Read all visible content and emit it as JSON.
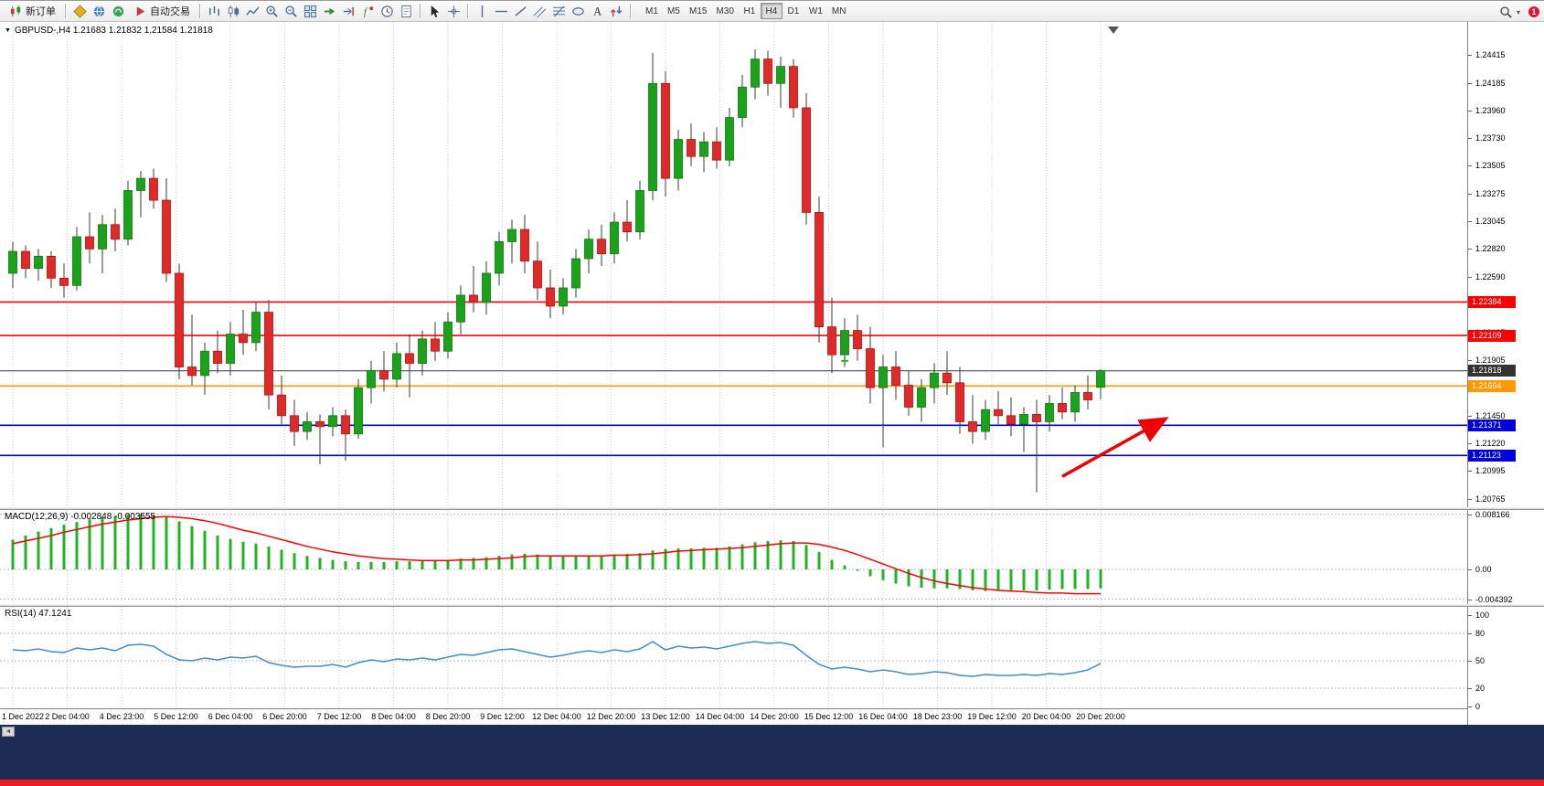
{
  "toolbar": {
    "notification_count": "1",
    "active_timeframe": "H4",
    "timeframes": [
      "M1",
      "M5",
      "M15",
      "M30",
      "H1",
      "H4",
      "D1",
      "W1",
      "MN"
    ],
    "buttons": [
      {
        "name": "new-order",
        "icon": "new-order",
        "label": "新订单"
      },
      {
        "name": "separator"
      },
      {
        "name": "mql5",
        "icon": "mql5"
      },
      {
        "name": "market",
        "icon": "market"
      },
      {
        "name": "community",
        "icon": "community"
      },
      {
        "name": "auto-trading",
        "icon": "auto-trading",
        "label": "自动交易"
      },
      {
        "name": "separator"
      },
      {
        "name": "bar-chart",
        "icon": "bar-chart"
      },
      {
        "name": "candle-chart",
        "icon": "candle-chart"
      },
      {
        "name": "line-chart",
        "icon": "line-chart"
      },
      {
        "name": "zoom-in",
        "icon": "zoom-in"
      },
      {
        "name": "zoom-out",
        "icon": "zoom-out"
      },
      {
        "name": "tile-windows",
        "icon": "tile-windows"
      },
      {
        "name": "auto-scroll",
        "icon": "auto-scroll"
      },
      {
        "name": "chart-shift",
        "icon": "chart-shift"
      },
      {
        "name": "indicators",
        "icon": "indicators"
      },
      {
        "name": "periods",
        "icon": "periods"
      },
      {
        "name": "templates",
        "icon": "templates"
      },
      {
        "name": "separator"
      },
      {
        "name": "cursor",
        "icon": "cursor"
      },
      {
        "name": "crosshair",
        "icon": "crosshair"
      },
      {
        "name": "separator"
      },
      {
        "name": "vertical-line",
        "icon": "vertical-line"
      },
      {
        "name": "horizontal-line",
        "icon": "horizontal-line"
      },
      {
        "name": "trendline",
        "icon": "trendline"
      },
      {
        "name": "channel",
        "icon": "channel"
      },
      {
        "name": "fibonacci",
        "icon": "fibonacci"
      },
      {
        "name": "shapes",
        "icon": "shapes"
      },
      {
        "name": "text",
        "icon": "text"
      },
      {
        "name": "arrows",
        "icon": "arrows"
      },
      {
        "name": "separator"
      }
    ]
  },
  "chart_header": {
    "symbol": "GBPUSD-",
    "timeframe": "H4",
    "open": "1.21683",
    "high": "1.21832",
    "low": "1.21584",
    "close": "1.21818"
  },
  "colors": {
    "up_candle": "#1aa31a",
    "up_candle_stroke": "#0b7a0b",
    "down_candle": "#e02a2a",
    "down_candle_stroke": "#b40d0d",
    "wick": "#3a3a3a",
    "grid": "#d2d2d2",
    "macd_histogram": "#22b322",
    "macd_signal": "#ff0000",
    "rsi_line": "#3d8fd1",
    "arrow": "#f00000",
    "marker": "#18a018"
  },
  "chart_data": {
    "type": "candlestick",
    "symbol": "GBPUSD-",
    "timeframe": "H4",
    "price_axis_labels": [
      "1.24415",
      "1.24185",
      "1.23960",
      "1.23730",
      "1.23505",
      "1.23275",
      "1.23045",
      "1.22820",
      "1.22590",
      "1.22365",
      "1.22135",
      "1.21905",
      "1.21680",
      "1.21450",
      "1.21220",
      "1.20995",
      "1.20765"
    ],
    "x_axis_labels": [
      "1 Dec 2022",
      "2 Dec 04:00",
      "4 Dec 23:00",
      "5 Dec 12:00",
      "6 Dec 04:00",
      "6 Dec 20:00",
      "7 Dec 12:00",
      "8 Dec 04:00",
      "8 Dec 20:00",
      "9 Dec 12:00",
      "12 Dec 04:00",
      "12 Dec 20:00",
      "13 Dec 12:00",
      "14 Dec 04:00",
      "14 Dec 20:00",
      "15 Dec 12:00",
      "16 Dec 04:00",
      "18 Dec 23:00",
      "19 Dec 12:00",
      "20 Dec 04:00",
      "20 Dec 20:00"
    ],
    "horizontal_lines": [
      {
        "label": "1.22384",
        "price": 1.22384,
        "color": "#ff0000",
        "width": 1.6,
        "role": "resistance"
      },
      {
        "label": "1.22109",
        "price": 1.22109,
        "color": "#ff0000",
        "width": 1.6,
        "role": "resistance"
      },
      {
        "label": "1.21818",
        "price": 1.21818,
        "color": "#333333",
        "width": 1,
        "role": "current-price"
      },
      {
        "label": "1.21694",
        "price": 1.21694,
        "color": "#ff9900",
        "width": 1.6,
        "role": "pivot"
      },
      {
        "label": "1.21371",
        "price": 1.21371,
        "color": "#0000dd",
        "width": 1.6,
        "role": "support"
      },
      {
        "label": "1.21123",
        "price": 1.21123,
        "color": "#0000dd",
        "width": 1.6,
        "role": "support"
      }
    ],
    "trade_markers": [
      {
        "index": 65,
        "price": 1.219
      },
      {
        "index": 71,
        "price": 1.2158
      }
    ],
    "arrow_annotation": {
      "from_index": 82,
      "from_price": 1.2095,
      "to_index": 90,
      "to_price": 1.2142,
      "color": "#f00000"
    },
    "candles_ohlc": [
      [
        1.2262,
        1.2288,
        1.225,
        1.228
      ],
      [
        1.228,
        1.2285,
        1.2258,
        1.2266
      ],
      [
        1.2266,
        1.2282,
        1.2256,
        1.2276
      ],
      [
        1.2276,
        1.228,
        1.225,
        1.2258
      ],
      [
        1.2258,
        1.227,
        1.2242,
        1.2252
      ],
      [
        1.2252,
        1.23,
        1.2248,
        1.2292
      ],
      [
        1.2292,
        1.2312,
        1.227,
        1.2282
      ],
      [
        1.2282,
        1.231,
        1.2262,
        1.2302
      ],
      [
        1.2302,
        1.2315,
        1.228,
        1.229
      ],
      [
        1.229,
        1.2338,
        1.2285,
        1.233
      ],
      [
        1.233,
        1.2346,
        1.2308,
        1.234
      ],
      [
        1.234,
        1.2348,
        1.2315,
        1.2322
      ],
      [
        1.2322,
        1.234,
        1.2255,
        1.2262
      ],
      [
        1.2262,
        1.227,
        1.2175,
        1.2185
      ],
      [
        1.2185,
        1.2228,
        1.217,
        1.2178
      ],
      [
        1.2178,
        1.2205,
        1.2162,
        1.2198
      ],
      [
        1.2198,
        1.2215,
        1.218,
        1.2188
      ],
      [
        1.2188,
        1.2222,
        1.2178,
        1.2212
      ],
      [
        1.2212,
        1.2232,
        1.2195,
        1.2205
      ],
      [
        1.2205,
        1.2238,
        1.2198,
        1.223
      ],
      [
        1.223,
        1.224,
        1.215,
        1.2162
      ],
      [
        1.2162,
        1.2178,
        1.2138,
        1.2145
      ],
      [
        1.2145,
        1.2158,
        1.212,
        1.2132
      ],
      [
        1.2132,
        1.2148,
        1.2125,
        1.214
      ],
      [
        1.214,
        1.2146,
        1.2105,
        1.2136
      ],
      [
        1.2136,
        1.2152,
        1.2128,
        1.2145
      ],
      [
        1.2145,
        1.215,
        1.2108,
        1.213
      ],
      [
        1.213,
        1.2175,
        1.2126,
        1.2168
      ],
      [
        1.2168,
        1.219,
        1.2155,
        1.2182
      ],
      [
        1.2182,
        1.2198,
        1.2165,
        1.2175
      ],
      [
        1.2175,
        1.2205,
        1.2168,
        1.2196
      ],
      [
        1.2196,
        1.2212,
        1.216,
        1.2188
      ],
      [
        1.2188,
        1.2215,
        1.2178,
        1.2208
      ],
      [
        1.2208,
        1.2222,
        1.219,
        1.2198
      ],
      [
        1.2198,
        1.223,
        1.2192,
        1.2222
      ],
      [
        1.2222,
        1.2252,
        1.2212,
        1.2244
      ],
      [
        1.2244,
        1.2268,
        1.223,
        1.2238
      ],
      [
        1.2238,
        1.2272,
        1.2228,
        1.2262
      ],
      [
        1.2262,
        1.2296,
        1.2252,
        1.2288
      ],
      [
        1.2288,
        1.2306,
        1.227,
        1.2298
      ],
      [
        1.2298,
        1.231,
        1.2262,
        1.2272
      ],
      [
        1.2272,
        1.2288,
        1.224,
        1.225
      ],
      [
        1.225,
        1.2265,
        1.2225,
        1.2235
      ],
      [
        1.2235,
        1.2258,
        1.2228,
        1.225
      ],
      [
        1.225,
        1.2282,
        1.2242,
        1.2274
      ],
      [
        1.2274,
        1.2298,
        1.2262,
        1.229
      ],
      [
        1.229,
        1.2302,
        1.2268,
        1.2278
      ],
      [
        1.2278,
        1.2312,
        1.227,
        1.2304
      ],
      [
        1.2304,
        1.2322,
        1.2288,
        1.2296
      ],
      [
        1.2296,
        1.2338,
        1.229,
        1.233
      ],
      [
        1.233,
        1.2443,
        1.2322,
        1.2418
      ],
      [
        1.2418,
        1.2428,
        1.2325,
        1.234
      ],
      [
        1.234,
        1.238,
        1.233,
        1.2372
      ],
      [
        1.2372,
        1.2385,
        1.235,
        1.2358
      ],
      [
        1.2358,
        1.2378,
        1.2345,
        1.237
      ],
      [
        1.237,
        1.2382,
        1.2348,
        1.2355
      ],
      [
        1.2355,
        1.2398,
        1.235,
        1.239
      ],
      [
        1.239,
        1.2425,
        1.2382,
        1.2415
      ],
      [
        1.2415,
        1.2446,
        1.2405,
        1.2438
      ],
      [
        1.2438,
        1.2445,
        1.2408,
        1.2418
      ],
      [
        1.2418,
        1.244,
        1.2398,
        1.2432
      ],
      [
        1.2432,
        1.2438,
        1.239,
        1.2398
      ],
      [
        1.2398,
        1.241,
        1.2302,
        1.2312
      ],
      [
        1.2312,
        1.2325,
        1.2205,
        1.2218
      ],
      [
        1.2218,
        1.2242,
        1.218,
        1.2195
      ],
      [
        1.2195,
        1.2225,
        1.2185,
        1.2215
      ],
      [
        1.2215,
        1.2228,
        1.219,
        1.22
      ],
      [
        1.22,
        1.2218,
        1.2155,
        1.2168
      ],
      [
        1.2168,
        1.2195,
        1.2119,
        1.2185
      ],
      [
        1.2185,
        1.2198,
        1.2158,
        1.217
      ],
      [
        1.217,
        1.2182,
        1.2145,
        1.2152
      ],
      [
        1.2152,
        1.2175,
        1.214,
        1.2168
      ],
      [
        1.2168,
        1.2188,
        1.2155,
        1.218
      ],
      [
        1.218,
        1.2198,
        1.2162,
        1.2172
      ],
      [
        1.2172,
        1.2185,
        1.213,
        1.214
      ],
      [
        1.214,
        1.2162,
        1.2122,
        1.2132
      ],
      [
        1.2132,
        1.2158,
        1.2125,
        1.215
      ],
      [
        1.215,
        1.2165,
        1.2138,
        1.2145
      ],
      [
        1.2145,
        1.216,
        1.2128,
        1.2138
      ],
      [
        1.2138,
        1.2152,
        1.2115,
        1.2146
      ],
      [
        1.2146,
        1.2158,
        1.2082,
        1.214
      ],
      [
        1.214,
        1.2162,
        1.2132,
        1.2155
      ],
      [
        1.2155,
        1.2168,
        1.2142,
        1.2148
      ],
      [
        1.2148,
        1.217,
        1.214,
        1.2164
      ],
      [
        1.2164,
        1.2178,
        1.215,
        1.2158
      ],
      [
        1.21683,
        1.21832,
        1.21584,
        1.21818
      ]
    ],
    "indicators": [
      {
        "type": "macd",
        "label": "MACD(12,26,9)",
        "current_values": "-0.002848 -0.003555",
        "axis_labels": [
          "0.008166",
          "0.00",
          "-0.004392"
        ],
        "axis_values": [
          0.008166,
          0,
          -0.004392
        ],
        "histogram": [
          0.0044,
          0.005,
          0.0056,
          0.0061,
          0.0066,
          0.007,
          0.0074,
          0.0077,
          0.0079,
          0.0081,
          0.0081,
          0.008,
          0.0077,
          0.0071,
          0.0064,
          0.0057,
          0.005,
          0.0045,
          0.0041,
          0.0038,
          0.0034,
          0.0029,
          0.0024,
          0.002,
          0.0017,
          0.0014,
          0.0012,
          0.0011,
          0.0011,
          0.0011,
          0.0012,
          0.0012,
          0.0013,
          0.0013,
          0.0014,
          0.0016,
          0.0017,
          0.0018,
          0.002,
          0.0022,
          0.0023,
          0.0022,
          0.002,
          0.0019,
          0.0019,
          0.002,
          0.0021,
          0.0022,
          0.0023,
          0.0024,
          0.0028,
          0.003,
          0.0031,
          0.0031,
          0.0032,
          0.0032,
          0.0034,
          0.0037,
          0.004,
          0.0042,
          0.0043,
          0.0042,
          0.0036,
          0.0026,
          0.0014,
          0.0006,
          -0.0002,
          -0.001,
          -0.0016,
          -0.0021,
          -0.0025,
          -0.0027,
          -0.0028,
          -0.0028,
          -0.0029,
          -0.0031,
          -0.0032,
          -0.0032,
          -0.0031,
          -0.0031,
          -0.0031,
          -0.003,
          -0.0029,
          -0.0029,
          -0.0029,
          -0.0028
        ],
        "signal": [
          0.0038,
          0.0042,
          0.0046,
          0.005,
          0.0055,
          0.0059,
          0.0063,
          0.0067,
          0.007,
          0.0073,
          0.0075,
          0.0077,
          0.0078,
          0.0077,
          0.0075,
          0.0072,
          0.0068,
          0.0063,
          0.0058,
          0.0054,
          0.0049,
          0.0044,
          0.0039,
          0.0034,
          0.003,
          0.0026,
          0.0023,
          0.002,
          0.0018,
          0.0016,
          0.0015,
          0.0014,
          0.0013,
          0.0013,
          0.0013,
          0.0014,
          0.0014,
          0.0015,
          0.0016,
          0.0017,
          0.0019,
          0.002,
          0.002,
          0.002,
          0.002,
          0.002,
          0.002,
          0.0021,
          0.0021,
          0.0022,
          0.0023,
          0.0025,
          0.0027,
          0.0028,
          0.0029,
          0.003,
          0.0031,
          0.0032,
          0.0034,
          0.0036,
          0.0038,
          0.0039,
          0.0039,
          0.0037,
          0.0033,
          0.0028,
          0.0022,
          0.0015,
          0.0008,
          0.0001,
          -0.0006,
          -0.0012,
          -0.0017,
          -0.0021,
          -0.0024,
          -0.0027,
          -0.0029,
          -0.0031,
          -0.0032,
          -0.0033,
          -0.0034,
          -0.0035,
          -0.0035,
          -0.0036,
          -0.0036,
          -0.0036
        ]
      },
      {
        "type": "rsi",
        "label": "RSI(14)",
        "current_value": "47.1241",
        "axis_labels": [
          "100",
          "80",
          "50",
          "20",
          "0"
        ],
        "axis_values": [
          100,
          80,
          50,
          20,
          0
        ],
        "levels": [
          80,
          50,
          20
        ],
        "values": [
          62,
          61,
          63,
          60,
          59,
          64,
          62,
          64,
          61,
          67,
          68,
          66,
          57,
          51,
          50,
          53,
          51,
          54,
          53,
          55,
          48,
          45,
          43,
          44,
          44,
          46,
          43,
          48,
          51,
          49,
          52,
          51,
          53,
          51,
          54,
          57,
          56,
          59,
          62,
          63,
          60,
          57,
          54,
          56,
          59,
          61,
          59,
          62,
          60,
          63,
          71,
          62,
          66,
          64,
          65,
          63,
          66,
          69,
          71,
          69,
          70,
          67,
          56,
          46,
          41,
          43,
          41,
          38,
          40,
          38,
          35,
          36,
          38,
          37,
          34,
          33,
          35,
          34,
          34,
          35,
          34,
          36,
          35,
          37,
          40,
          47.12
        ]
      }
    ]
  }
}
